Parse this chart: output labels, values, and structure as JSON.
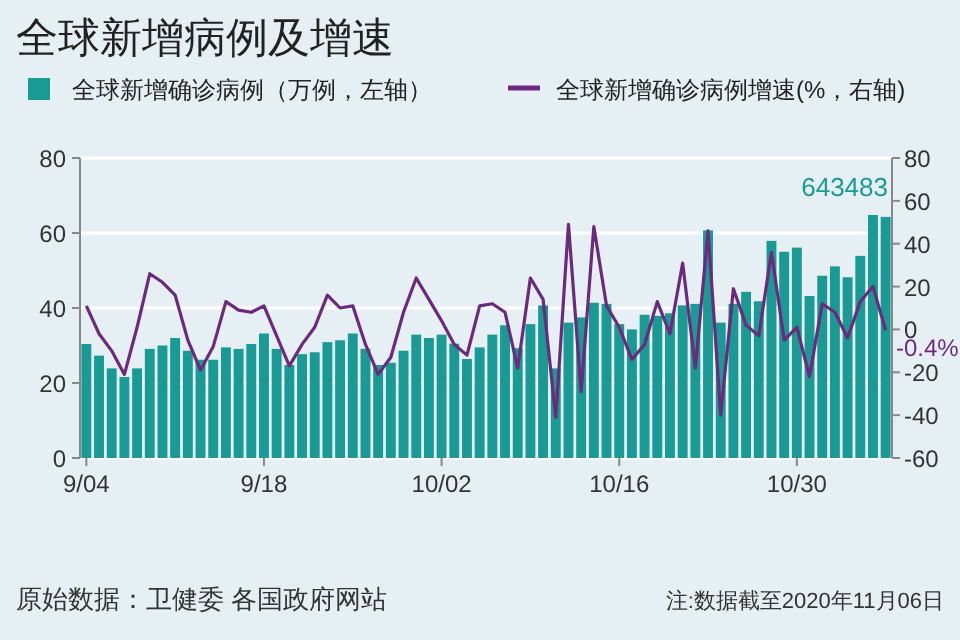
{
  "chart_data": {
    "type": "bar",
    "title": "全球新增病例及增速",
    "x": [
      "2020-09-04",
      "2020-09-05",
      "2020-09-06",
      "2020-09-07",
      "2020-09-08",
      "2020-09-09",
      "2020-09-10",
      "2020-09-11",
      "2020-09-12",
      "2020-09-13",
      "2020-09-14",
      "2020-09-15",
      "2020-09-16",
      "2020-09-17",
      "2020-09-18",
      "2020-09-19",
      "2020-09-20",
      "2020-09-21",
      "2020-09-22",
      "2020-09-23",
      "2020-09-24",
      "2020-09-25",
      "2020-09-26",
      "2020-09-27",
      "2020-09-28",
      "2020-09-29",
      "2020-09-30",
      "2020-10-01",
      "2020-10-02",
      "2020-10-03",
      "2020-10-04",
      "2020-10-05",
      "2020-10-06",
      "2020-10-07",
      "2020-10-08",
      "2020-10-09",
      "2020-10-10",
      "2020-10-11",
      "2020-10-12",
      "2020-10-13",
      "2020-10-14",
      "2020-10-15",
      "2020-10-16",
      "2020-10-17",
      "2020-10-18",
      "2020-10-19",
      "2020-10-20",
      "2020-10-21",
      "2020-10-22",
      "2020-10-23",
      "2020-10-24",
      "2020-10-25",
      "2020-10-26",
      "2020-10-27",
      "2020-10-28",
      "2020-10-29",
      "2020-10-30",
      "2020-10-31",
      "2020-11-01",
      "2020-11-02",
      "2020-11-03",
      "2020-11-04",
      "2020-11-05",
      "2020-11-06"
    ],
    "xlim": [
      "2020-09-03T12:00",
      "2020-11-06T12:00"
    ],
    "xticks": [
      {
        "value": "2020-09-04",
        "label": "9/04"
      },
      {
        "value": "2020-09-18",
        "label": "9/18"
      },
      {
        "value": "2020-10-02",
        "label": "10/02"
      },
      {
        "value": "2020-10-16",
        "label": "10/16"
      },
      {
        "value": "2020-10-30",
        "label": "10/30"
      }
    ],
    "ylim": [
      0,
      80
    ],
    "yticks": [
      0,
      20,
      40,
      60,
      80
    ],
    "y2lim": [
      -60,
      80
    ],
    "y2ticks": [
      -60,
      -40,
      -20,
      0,
      20,
      40,
      60,
      80
    ],
    "grid": "y",
    "legend": "top",
    "series": [
      {
        "name": "全球新增确诊病例（万例，左轴）",
        "color": "#1a9a94",
        "values": [
          30.4,
          27.3,
          23.9,
          21.6,
          23.9,
          29.1,
          30,
          32,
          28.6,
          26.2,
          26.2,
          29.5,
          29.1,
          30.4,
          33.2,
          29.1,
          24.8,
          27.7,
          28.2,
          30.9,
          31.4,
          33.2,
          29.1,
          24.8,
          25.4,
          28.6,
          32.9,
          32,
          32.9,
          30.5,
          26.4,
          29.5,
          32.9,
          35.4,
          29.3,
          35.7,
          40.7,
          23.9,
          36.1,
          37.5,
          41.4,
          41.1,
          35.7,
          34.3,
          38.2,
          37.9,
          38.6,
          40.7,
          41.1,
          60.7,
          36.1,
          41.1,
          44.3,
          41.8,
          57.9,
          55,
          56.1,
          43.2,
          48.6,
          51.1,
          48.2,
          53.9,
          64.8,
          64.3
        ]
      },
      {
        "name": "全球新增确诊病例增速(%，右轴)",
        "type": "line",
        "axis": "y2",
        "color": "#6b2a7e",
        "values": [
          11,
          -2,
          -10,
          -21,
          1,
          26,
          22,
          16,
          -5,
          -19,
          -8,
          13,
          9,
          8,
          11,
          -3,
          -17,
          -7,
          1,
          16,
          10,
          11,
          -7,
          -21,
          -13,
          8,
          24,
          14,
          4,
          -7,
          -12,
          11,
          12,
          8,
          -18,
          24,
          14,
          -41,
          49,
          -29,
          48,
          11,
          1,
          -14,
          -7,
          13,
          -2,
          31,
          -18,
          46,
          -40,
          19,
          2,
          -3,
          36,
          -5,
          1,
          -22,
          12,
          8,
          -4,
          13,
          20,
          -0.4
        ],
        "value_labels": [
          null,
          null,
          null,
          null,
          null,
          null,
          null,
          null,
          null,
          null,
          null,
          null,
          null,
          null,
          null,
          null,
          null,
          null,
          null,
          null,
          null,
          null,
          null,
          null,
          null,
          null,
          null,
          null,
          null,
          null,
          null,
          null,
          null,
          null,
          null,
          null,
          null,
          null,
          null,
          null,
          null,
          null,
          null,
          null,
          null,
          null,
          null,
          null,
          null,
          null,
          null,
          null,
          null,
          null,
          null,
          null,
          null,
          null,
          null,
          null,
          null,
          null,
          null,
          "-0.4%"
        ]
      }
    ],
    "annotations": [
      "643483",
      "原始数据：卫健委 各国政府网站",
      "注:数据截至2020年11月06日"
    ]
  }
}
